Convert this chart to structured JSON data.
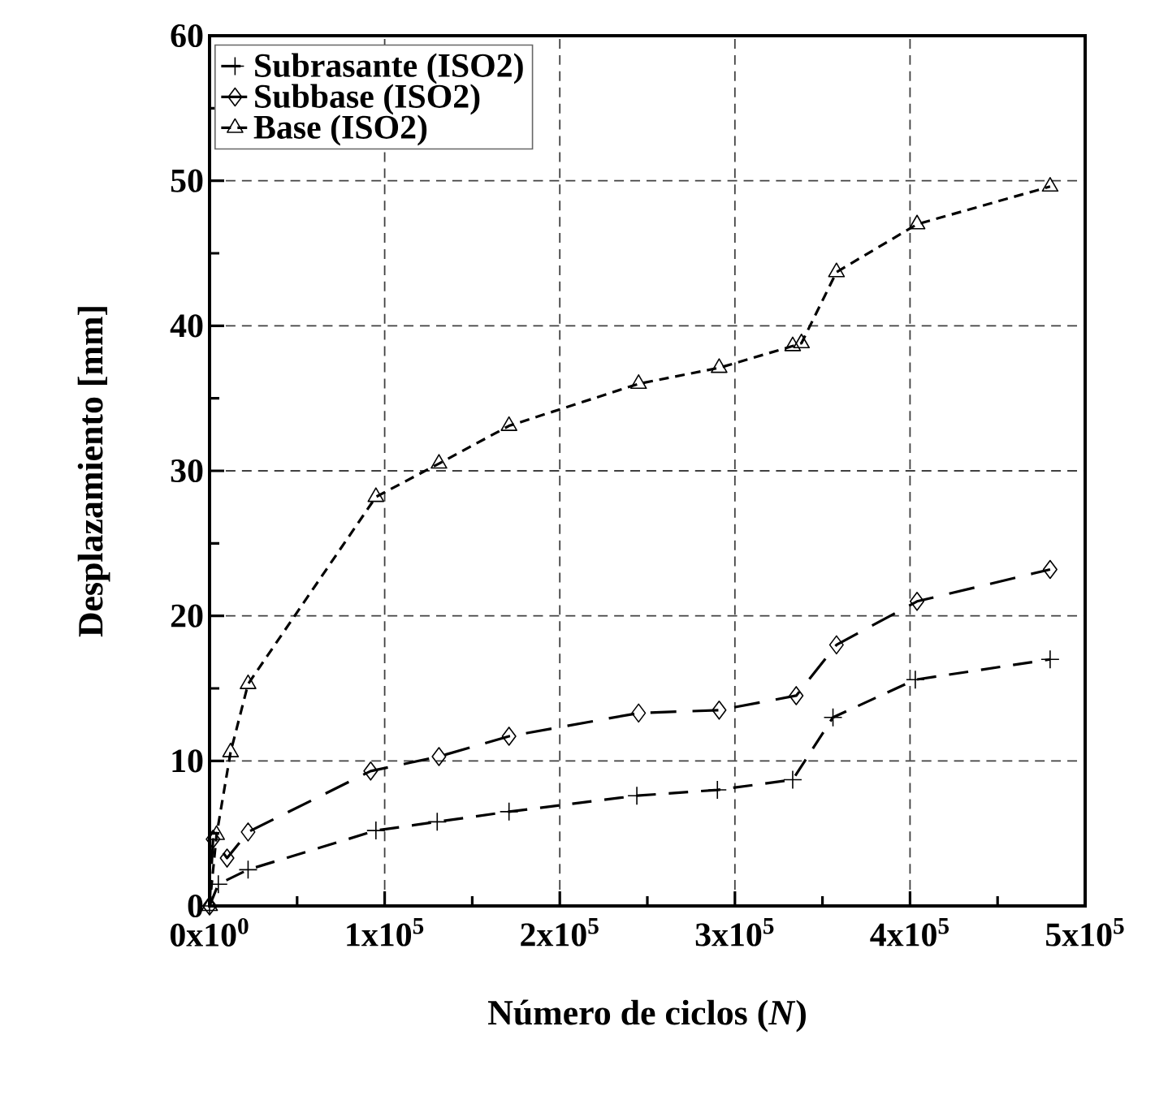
{
  "chart_data": {
    "type": "line",
    "xlabel": "Número de ciclos (*N*)",
    "ylabel": "Desplazamiento [mm]",
    "xlim": [
      0,
      500000
    ],
    "ylim": [
      0,
      60
    ],
    "xticks": [
      {
        "value": 0,
        "label": "0x10$^{0}$"
      },
      {
        "value": 100000,
        "label": "1x10$^{5}$"
      },
      {
        "value": 200000,
        "label": "2x10$^{5}$"
      },
      {
        "value": 300000,
        "label": "3x10$^{5}$"
      },
      {
        "value": 400000,
        "label": "4x10$^{5}$"
      },
      {
        "value": 500000,
        "label": "5x10$^{5}$"
      }
    ],
    "yticks": [
      0,
      10,
      20,
      30,
      40,
      50,
      60
    ],
    "grid": true,
    "legend": "top left",
    "line_style": "dashed",
    "series": [
      {
        "name": "Subrasante (ISO2)",
        "color": "#000000",
        "marker": "cross",
        "x": [
          0,
          5000,
          22000,
          95000,
          130000,
          171000,
          244000,
          290000,
          333000,
          356000,
          403000,
          480000
        ],
        "values": [
          0,
          1.5,
          2.5,
          5.2,
          5.8,
          6.5,
          7.6,
          8.0,
          8.7,
          13.0,
          15.6,
          17.0
        ]
      },
      {
        "name": "Subbase (ISO2)",
        "color": "#000000",
        "marker": "diamond",
        "x": [
          0,
          2000,
          10000,
          22000,
          92000,
          131000,
          171000,
          245000,
          291000,
          335000,
          358000,
          404000,
          480000
        ],
        "values": [
          0,
          4.6,
          3.3,
          5.1,
          9.3,
          10.3,
          11.7,
          13.3,
          13.5,
          14.5,
          18.0,
          21.0,
          23.2
        ]
      },
      {
        "name": "Base (ISO2)",
        "color": "#000000",
        "marker": "triangle",
        "x": [
          0,
          4000,
          12000,
          22000,
          95000,
          131000,
          171000,
          245000,
          291000,
          333000,
          338000,
          358000,
          404000,
          480000
        ],
        "values": [
          0,
          4.9,
          10.6,
          15.3,
          28.2,
          30.5,
          33.1,
          36.0,
          37.1,
          38.6,
          38.8,
          43.7,
          47.0,
          49.6
        ]
      }
    ]
  }
}
